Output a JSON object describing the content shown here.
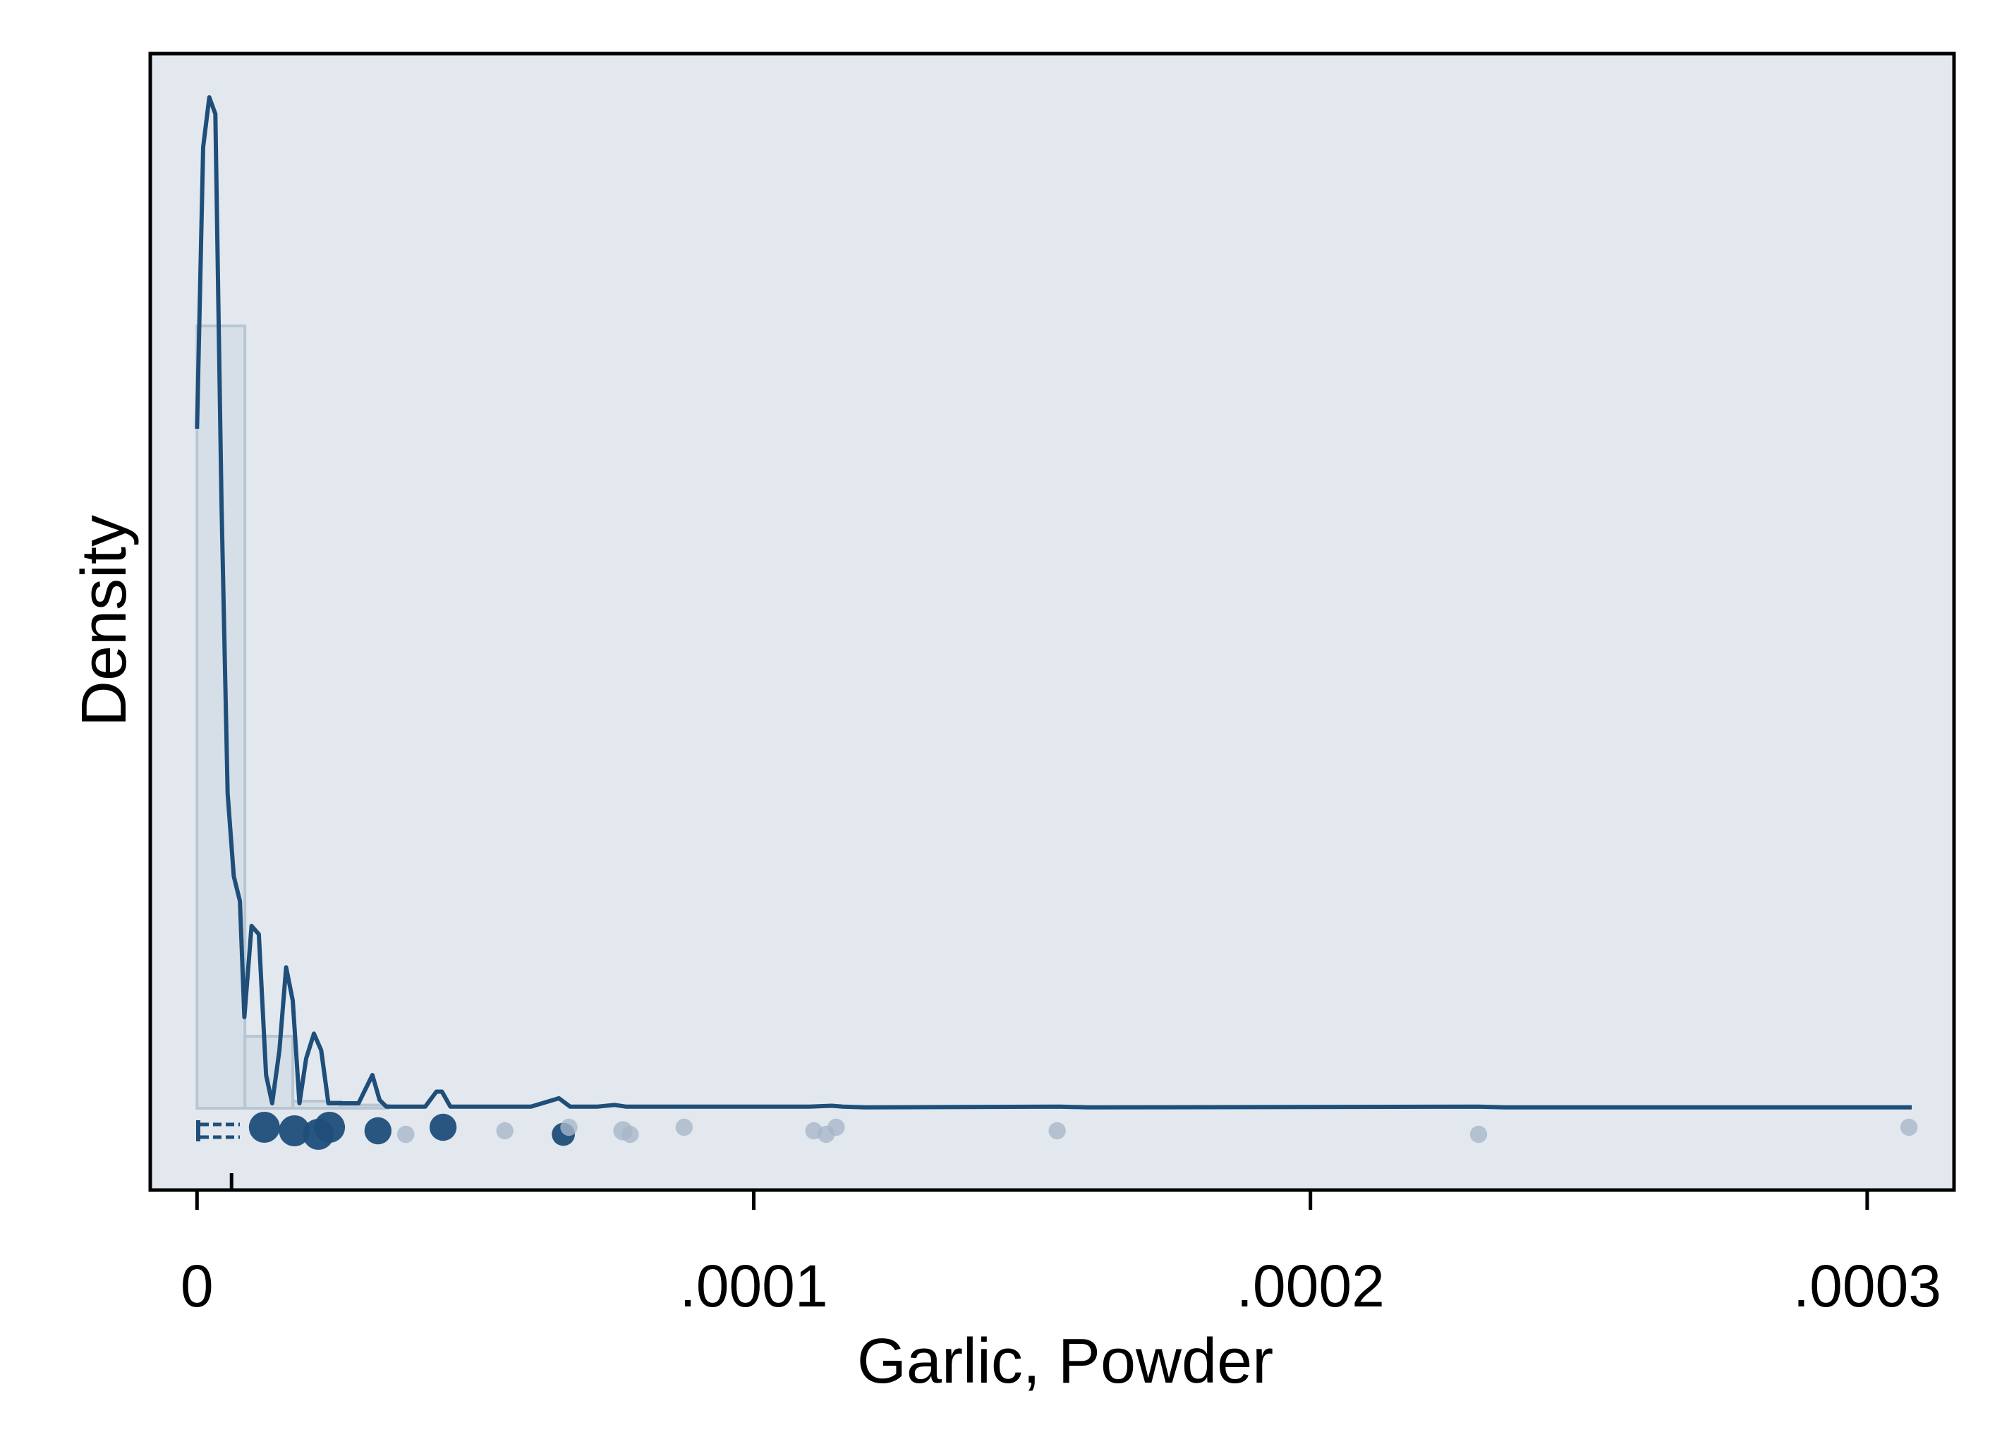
{
  "chart_data": {
    "type": "histogram",
    "xlabel": "Garlic, Powder",
    "ylabel": "Density",
    "xlim": [
      -8.4e-06,
      0.0003156
    ],
    "y_ticks_shown": false,
    "x_ticks": [
      {
        "value": 0,
        "label": "0"
      },
      {
        "value": 0.0001,
        "label": ".0001"
      },
      {
        "value": 0.0002,
        "label": ".0002"
      },
      {
        "value": 0.0003,
        "label": ".0003"
      }
    ],
    "mean_marker_x": 6.2e-06,
    "histogram": {
      "bin_width": 8.6e-06,
      "relative_heights": [
        1.0,
        0.092,
        0.009,
        0.004,
        0.0,
        0.0,
        0.0,
        0.0
      ],
      "bins_start": 0
    },
    "density_curve": {
      "x": [
        0,
        1.1e-06,
        2.2e-06,
        3.3e-06,
        4.4e-06,
        5.5e-06,
        6.6e-06,
        7.7e-06,
        8.5e-06,
        9.8e-06,
        1.11e-05,
        1.24e-05,
        1.35e-05,
        1.48e-05,
        1.6e-05,
        1.72e-05,
        1.84e-05,
        1.96e-05,
        2.1e-05,
        2.23e-05,
        2.36e-05,
        2.5e-05,
        2.6e-05,
        2.9e-05,
        3.15e-05,
        3.28e-05,
        3.4e-05,
        3.5e-05,
        3.8e-05,
        4.1e-05,
        4.3e-05,
        4.4e-05,
        4.55e-05,
        4.7e-05,
        6e-05,
        6.5e-05,
        6.7e-05,
        7.2e-05,
        7.5e-05,
        7.7e-05,
        8.8e-05,
        0.0001,
        0.00011,
        0.000114,
        0.000116,
        0.00012,
        0.000155,
        0.00016,
        0.00023,
        0.000235,
        0.000308
      ],
      "y": [
        0.82,
        1.16,
        1.22,
        1.2,
        0.73,
        0.38,
        0.28,
        0.25,
        0.11,
        0.22,
        0.21,
        0.04,
        0.006,
        0.07,
        0.17,
        0.13,
        0.006,
        0.06,
        0.09,
        0.07,
        0.006,
        0.006,
        0.006,
        0.006,
        0.04,
        0.01,
        0.002,
        0.002,
        0.002,
        0.002,
        0.02,
        0.02,
        0.002,
        0.002,
        0.002,
        0.012,
        0.002,
        0.002,
        0.004,
        0.002,
        0.002,
        0.002,
        0.002,
        0.003,
        0.002,
        0.001,
        0.002,
        0.001,
        0.002,
        0.001,
        0.001
      ]
    },
    "rug_points": [
      {
        "x": 1.21e-05,
        "size": 1.0
      },
      {
        "x": 1.75e-05,
        "size": 1.0
      },
      {
        "x": 2.18e-05,
        "size": 1.0
      },
      {
        "x": 2.38e-05,
        "size": 1.0
      },
      {
        "x": 3.25e-05,
        "size": 0.8
      },
      {
        "x": 3.75e-05,
        "size": 0.3
      },
      {
        "x": 4.42e-05,
        "size": 0.8
      },
      {
        "x": 5.53e-05,
        "size": 0.3
      },
      {
        "x": 6.58e-05,
        "size": 0.6
      },
      {
        "x": 6.68e-05,
        "size": 0.3
      },
      {
        "x": 7.65e-05,
        "size": 0.4
      },
      {
        "x": 7.78e-05,
        "size": 0.3
      },
      {
        "x": 8.75e-05,
        "size": 0.3
      },
      {
        "x": 0.0001108,
        "size": 0.3
      },
      {
        "x": 0.000113,
        "size": 0.3
      },
      {
        "x": 0.0001148,
        "size": 0.3
      },
      {
        "x": 0.0001545,
        "size": 0.3
      },
      {
        "x": 0.0002302,
        "size": 0.3
      },
      {
        "x": 0.0003075,
        "size": 0.3
      }
    ],
    "colors": {
      "line": "#1f4e79",
      "bars_fill": "#d6dfe7",
      "bars_stroke": "#b8c6d3",
      "plot_background": "#e2e8ee",
      "rug_light": "#a7b7c8"
    }
  }
}
